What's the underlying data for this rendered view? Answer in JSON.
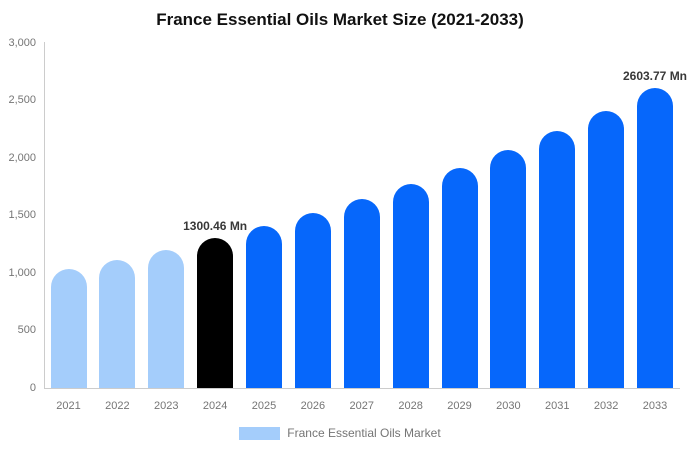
{
  "chart_data": {
    "type": "bar",
    "title": "France Essential Oils Market Size (2021-2033)",
    "xlabel": "",
    "ylabel": "",
    "ylim": [
      0,
      3000
    ],
    "grid": false,
    "legend_position": "bottom-center",
    "yticks": [
      {
        "value": 3000,
        "label": "3,000"
      },
      {
        "value": 2500,
        "label": "2,500"
      },
      {
        "value": 2000,
        "label": "2,000"
      },
      {
        "value": 1500,
        "label": "1,500"
      },
      {
        "value": 1000,
        "label": "1,000"
      },
      {
        "value": 500,
        "label": "500"
      },
      {
        "value": 0,
        "label": "0"
      }
    ],
    "categories": [
      "2021",
      "2022",
      "2023",
      "2024",
      "2025",
      "2026",
      "2027",
      "2028",
      "2029",
      "2030",
      "2031",
      "2032",
      "2033"
    ],
    "bars": [
      {
        "year": "2021",
        "value": 1032,
        "color": "light"
      },
      {
        "year": "2022",
        "value": 1110,
        "color": "light"
      },
      {
        "year": "2023",
        "value": 1200,
        "color": "light"
      },
      {
        "year": "2024",
        "value": 1300.46,
        "color": "black",
        "label": "1300.46 Mn"
      },
      {
        "year": "2025",
        "value": 1405,
        "color": "blue"
      },
      {
        "year": "2026",
        "value": 1517,
        "color": "blue"
      },
      {
        "year": "2027",
        "value": 1639,
        "color": "blue"
      },
      {
        "year": "2028",
        "value": 1770,
        "color": "blue"
      },
      {
        "year": "2029",
        "value": 1912,
        "color": "blue"
      },
      {
        "year": "2030",
        "value": 2066,
        "color": "blue"
      },
      {
        "year": "2031",
        "value": 2231,
        "color": "blue"
      },
      {
        "year": "2032",
        "value": 2410,
        "color": "blue"
      },
      {
        "year": "2033",
        "value": 2603.77,
        "color": "blue",
        "label": "2603.77 Mn"
      }
    ],
    "legend": {
      "label": "France Essential Oils Market",
      "swatch_color": "#A4CDFB"
    },
    "colors": {
      "light": "#A4CDFB",
      "black": "#000000",
      "blue": "#0667FB",
      "axis": "#cccccc",
      "tick_text": "#757575",
      "title_text": "#111111",
      "value_label_text": "#383838"
    }
  }
}
